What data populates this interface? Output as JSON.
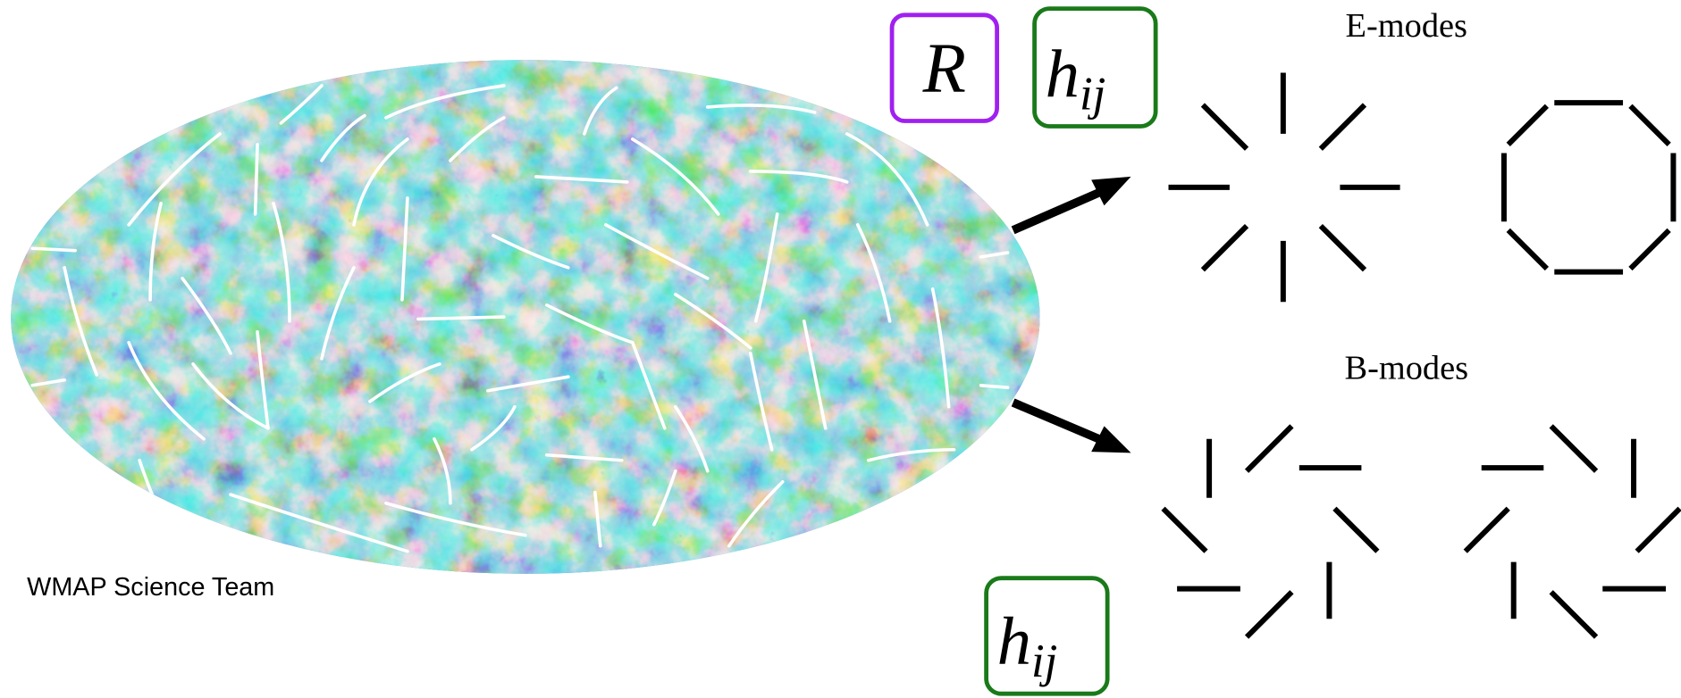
{
  "labels": {
    "e_modes": "E-modes",
    "b_modes": "B-modes",
    "credit": "WMAP Science Team",
    "scalar": "R",
    "tensor_top": {
      "base": "h",
      "sub": "ij"
    },
    "tensor_bottom": {
      "base": "h",
      "sub": "ij"
    }
  }
}
